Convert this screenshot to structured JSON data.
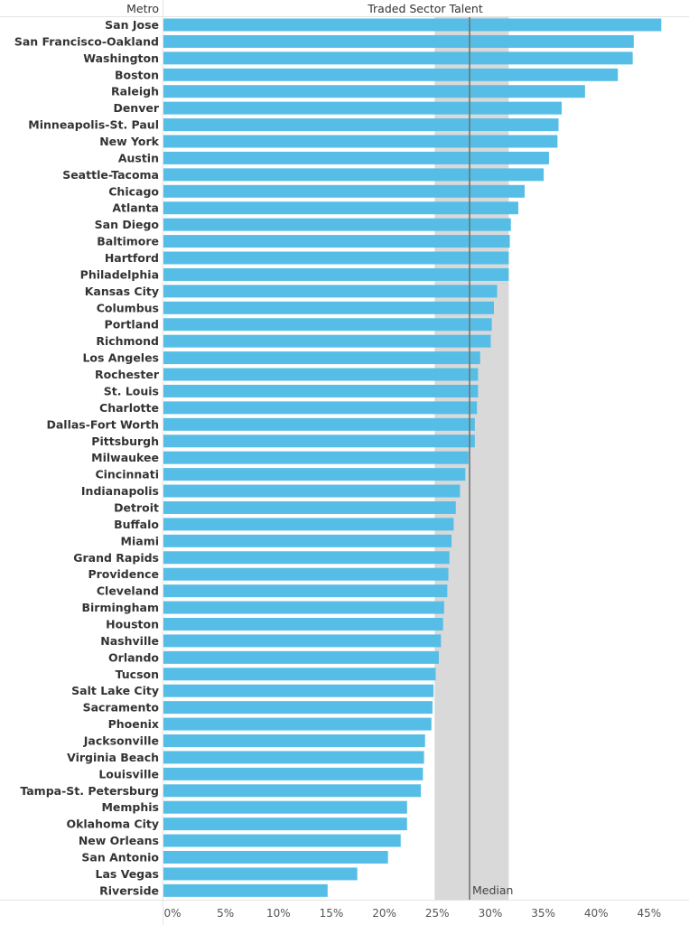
{
  "header": {
    "row_label": "Metro",
    "measure_label": "Traded Sector Talent"
  },
  "colors": {
    "bar": "#56BEE6",
    "band": "#D9D9D9",
    "median_line": "#6E6E6E",
    "gridline": "#E4E4E4",
    "text": "#333333"
  },
  "chart_data": {
    "type": "bar",
    "orientation": "horizontal",
    "title": "Traded Sector Talent",
    "xlabel": "",
    "ylabel": "Metro",
    "xlim": [
      0,
      0.48
    ],
    "x_ticks": [
      0,
      0.05,
      0.1,
      0.15,
      0.2,
      0.25,
      0.3,
      0.35,
      0.4,
      0.45
    ],
    "x_tick_labels": [
      "0%",
      "5%",
      "10%",
      "15%",
      "20%",
      "25%",
      "30%",
      "35%",
      "40%",
      "45%"
    ],
    "grid": false,
    "legend": "none",
    "reference_band": [
      0.256,
      0.326
    ],
    "median": {
      "label": "Median",
      "value": 0.289
    },
    "categories": [
      "San Jose",
      "San Francisco-Oakland",
      "Washington",
      "Boston",
      "Raleigh",
      "Denver",
      "Minneapolis-St. Paul",
      "New York",
      "Austin",
      "Seattle-Tacoma",
      "Chicago",
      "Atlanta",
      "San Diego",
      "Baltimore",
      "Hartford",
      "Philadelphia",
      "Kansas City",
      "Columbus",
      "Portland",
      "Richmond",
      "Los Angeles",
      "Rochester",
      "St. Louis",
      "Charlotte",
      "Dallas-Fort Worth",
      "Pittsburgh",
      "Milwaukee",
      "Cincinnati",
      "Indianapolis",
      "Detroit",
      "Buffalo",
      "Miami",
      "Grand Rapids",
      "Providence",
      "Cleveland",
      "Birmingham",
      "Houston",
      "Nashville",
      "Orlando",
      "Tucson",
      "Salt Lake City",
      "Sacramento",
      "Phoenix",
      "Jacksonville",
      "Virginia Beach",
      "Louisville",
      "Tampa-St. Petersburg",
      "Memphis",
      "Oklahoma City",
      "New Orleans",
      "San Antonio",
      "Las Vegas",
      "Riverside"
    ],
    "values": [
      0.47,
      0.444,
      0.443,
      0.429,
      0.398,
      0.376,
      0.373,
      0.372,
      0.364,
      0.359,
      0.341,
      0.335,
      0.328,
      0.327,
      0.326,
      0.326,
      0.315,
      0.312,
      0.31,
      0.309,
      0.299,
      0.297,
      0.297,
      0.296,
      0.294,
      0.294,
      0.288,
      0.285,
      0.28,
      0.276,
      0.274,
      0.272,
      0.27,
      0.269,
      0.268,
      0.265,
      0.264,
      0.262,
      0.26,
      0.257,
      0.255,
      0.254,
      0.253,
      0.247,
      0.246,
      0.245,
      0.243,
      0.23,
      0.23,
      0.224,
      0.212,
      0.183,
      0.155
    ]
  }
}
